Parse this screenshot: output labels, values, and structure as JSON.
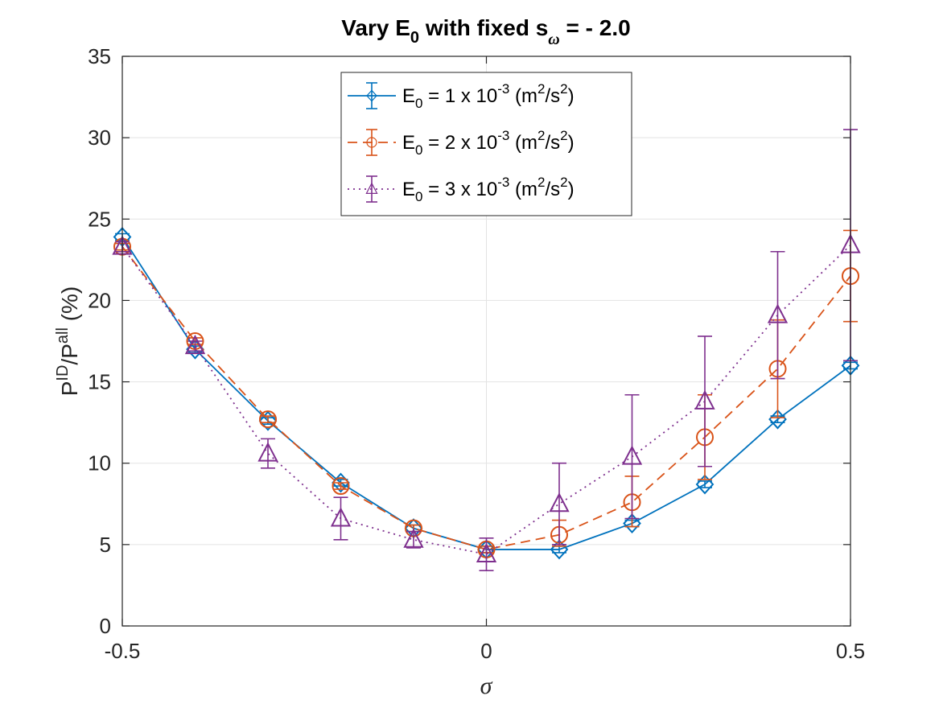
{
  "chart_data": {
    "type": "line",
    "title": {
      "main": "Vary E",
      "sub": "0",
      "mid": " with fixed s",
      "sub2": "ω",
      "end": " = - 2.0"
    },
    "xlabel": "σ",
    "ylabel": {
      "p1": "P",
      "sup1": "ID",
      "mid": "/P",
      "sup2": "all",
      "end": " (%)"
    },
    "xlim": [
      -0.5,
      0.5
    ],
    "ylim": [
      0,
      35
    ],
    "xticks": [
      -0.5,
      0,
      0.5
    ],
    "xtick_labels": [
      "-0.5",
      "0",
      "0.5"
    ],
    "yticks": [
      0,
      5,
      10,
      15,
      20,
      25,
      30,
      35
    ],
    "ytick_labels": [
      "0",
      "5",
      "10",
      "15",
      "20",
      "25",
      "30",
      "35"
    ],
    "grid": true,
    "legend_position": "top-center",
    "x": [
      -0.5,
      -0.4,
      -0.3,
      -0.2,
      -0.1,
      0.0,
      0.1,
      0.2,
      0.3,
      0.4,
      0.5
    ],
    "series": [
      {
        "name": "E0 = 1 x 10^-3 (m^2/s^2)",
        "legend": {
          "a": "E",
          "b": "0",
          "c": " = 1 x 10",
          "d": "-3",
          "e": " (m",
          "f": "2",
          "g": "/s",
          "h": "2",
          "i": ")"
        },
        "color": "#0072BD",
        "marker": "diamond",
        "line_style": "solid",
        "values": [
          23.9,
          17.0,
          12.6,
          8.8,
          6.0,
          4.7,
          4.7,
          6.3,
          8.7,
          12.7,
          16.0
        ],
        "err_low": [
          0.2,
          0.2,
          0.2,
          0.2,
          0.2,
          0.2,
          0.2,
          0.2,
          0.2,
          0.2,
          0.2
        ],
        "err_high": [
          0.2,
          0.2,
          0.2,
          0.2,
          0.2,
          0.2,
          0.2,
          0.2,
          0.2,
          0.2,
          0.2
        ]
      },
      {
        "name": "E0 = 2 x 10^-3 (m^2/s^2)",
        "legend": {
          "a": "E",
          "b": "0",
          "c": " = 2 x 10",
          "d": "-3",
          "e": " (m",
          "f": "2",
          "g": "/s",
          "h": "2",
          "i": ")"
        },
        "color": "#D95319",
        "marker": "circle",
        "line_style": "dashed",
        "values": [
          23.3,
          17.5,
          12.7,
          8.6,
          6.0,
          4.7,
          5.6,
          7.6,
          11.6,
          15.8,
          21.5
        ],
        "err_low": [
          0.2,
          0.2,
          0.2,
          0.2,
          0.2,
          0.2,
          0.7,
          1.5,
          2.6,
          3.0,
          2.8
        ],
        "err_high": [
          0.2,
          0.2,
          0.2,
          0.2,
          0.2,
          0.2,
          0.9,
          1.6,
          2.6,
          3.0,
          2.8
        ]
      },
      {
        "name": "E0 = 3 x 10^-3 (m^2/s^2)",
        "legend": {
          "a": "E",
          "b": "0",
          "c": " = 3 x 10",
          "d": "-3",
          "e": " (m",
          "f": "2",
          "g": "/s",
          "h": "2",
          "i": ")"
        },
        "color": "#7E2F8E",
        "marker": "triangle",
        "line_style": "dotted",
        "values": [
          23.3,
          17.2,
          10.6,
          6.6,
          5.3,
          4.4,
          7.5,
          10.4,
          13.8,
          19.1,
          23.4
        ],
        "err_low": [
          0.3,
          0.3,
          0.9,
          1.3,
          0.5,
          1.0,
          2.5,
          3.8,
          4.0,
          3.9,
          7.1
        ],
        "err_high": [
          0.3,
          0.3,
          0.9,
          1.3,
          0.5,
          1.0,
          2.5,
          3.8,
          4.0,
          3.9,
          7.1
        ]
      }
    ]
  }
}
